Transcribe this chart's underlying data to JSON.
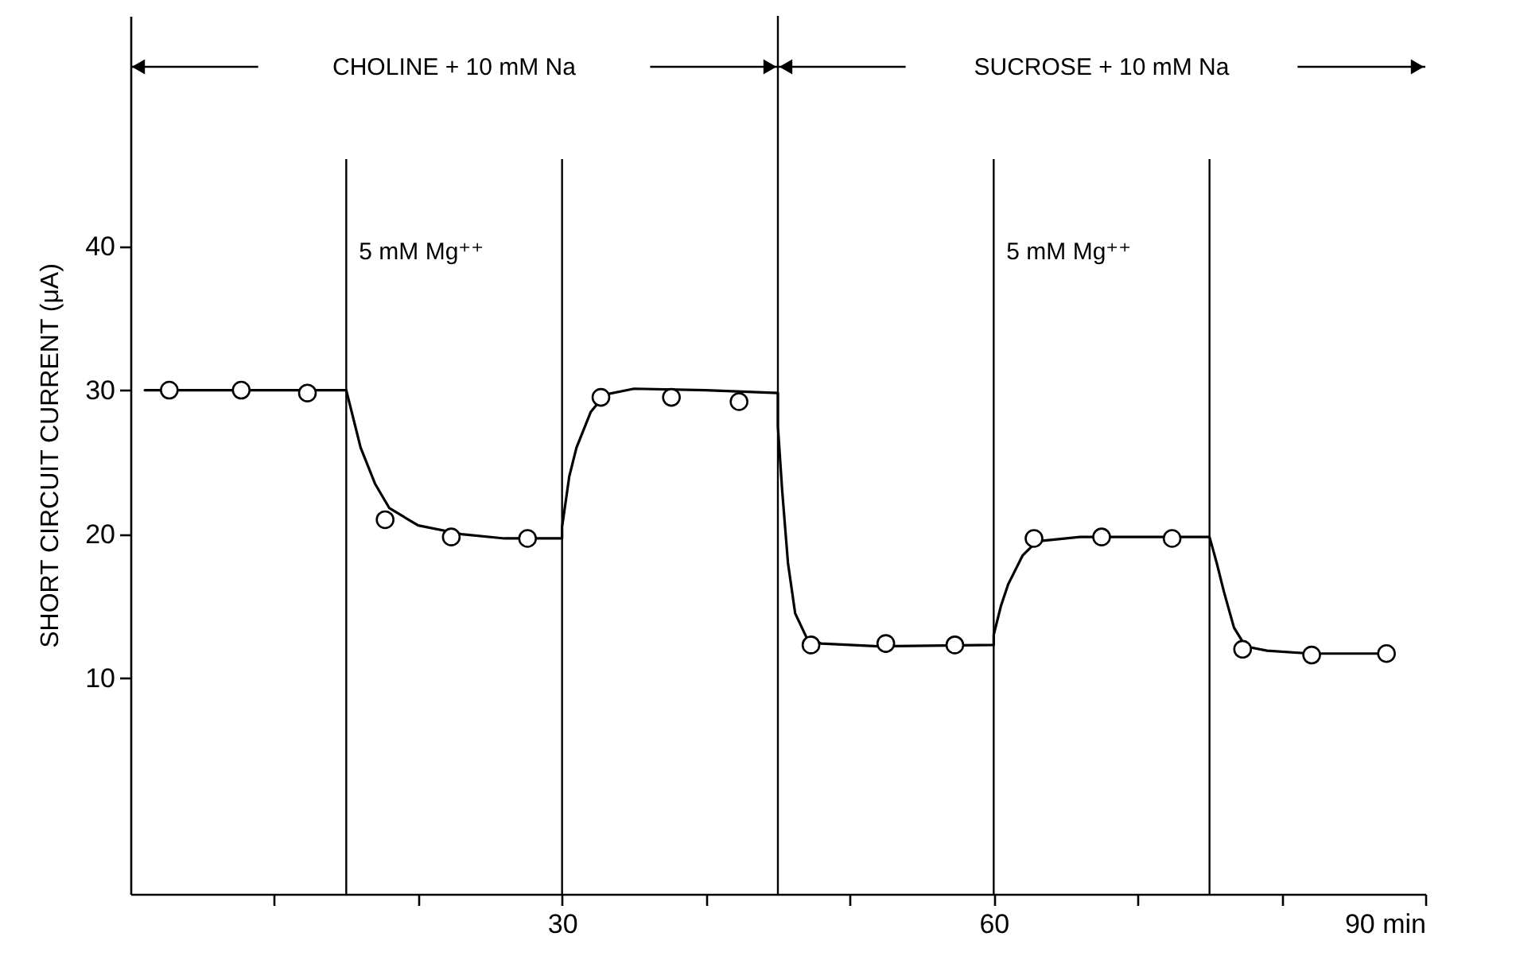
{
  "chart_data": {
    "type": "scatter",
    "ylabel": "SHORT CIRCUIT CURRENT (μA)",
    "xlim": [
      0,
      90
    ],
    "ylim": [
      -5,
      56
    ],
    "xticks": [
      {
        "value": 10,
        "label": null
      },
      {
        "value": 20,
        "label": null
      },
      30,
      {
        "value": 40,
        "label": null
      },
      {
        "value": 50,
        "label": null
      },
      60,
      {
        "value": 70,
        "label": null
      },
      {
        "value": 80,
        "label": null
      },
      {
        "value": 90,
        "label": "90 min"
      }
    ],
    "yticks": [
      10,
      20,
      30,
      40
    ],
    "marker": "circle",
    "series": [
      {
        "type": "line",
        "color": "#000000",
        "line_style": "solid",
        "marker": "none",
        "x": [
          1,
          15,
          15.5,
          16,
          17,
          18,
          20,
          23,
          26,
          30,
          30,
          30.5,
          31,
          32,
          33,
          35,
          40,
          45,
          45,
          45.3,
          45.7,
          46.2,
          47,
          48,
          52,
          60,
          60,
          60.5,
          61,
          62,
          63,
          66,
          75,
          75.5,
          76,
          76.7,
          77.5,
          79,
          82,
          87.3
        ],
        "values": [
          30,
          30,
          28,
          26,
          23.5,
          21.8,
          20.6,
          20,
          19.7,
          19.7,
          20.5,
          24,
          26,
          28.5,
          29.7,
          30.1,
          30,
          29.8,
          27.5,
          23,
          18,
          14.5,
          12.8,
          12.4,
          12.2,
          12.3,
          13,
          15,
          16.5,
          18.5,
          19.5,
          19.8,
          19.8,
          18,
          16,
          13.5,
          12.2,
          11.9,
          11.7,
          11.7
        ]
      },
      {
        "color": "#000000",
        "x": [
          2.7,
          7.7,
          12.3,
          17.7,
          22.3,
          27.6,
          32.7,
          37.6,
          42.3,
          47.3,
          52.5,
          57.3,
          62.8,
          67.5,
          72.4,
          77.3,
          82.1,
          87.3
        ],
        "values": [
          30,
          30,
          29.8,
          21,
          19.8,
          19.7,
          29.5,
          29.5,
          29.2,
          12.3,
          12.4,
          12.3,
          19.7,
          19.8,
          19.7,
          12,
          11.6,
          11.7
        ]
      }
    ],
    "ref_lines": [
      {
        "axis": "x",
        "value": 15,
        "label": "5 mM Mg⁺⁺"
      },
      {
        "axis": "x",
        "value": 30
      },
      {
        "axis": "x",
        "value": 45
      },
      {
        "axis": "x",
        "value": 60,
        "label": "5 mM Mg⁺⁺"
      },
      {
        "axis": "x",
        "value": 75
      }
    ],
    "annotations": [
      "CHOLINE + 10 mM Na",
      "SUCROSE + 10 mM Na"
    ]
  }
}
